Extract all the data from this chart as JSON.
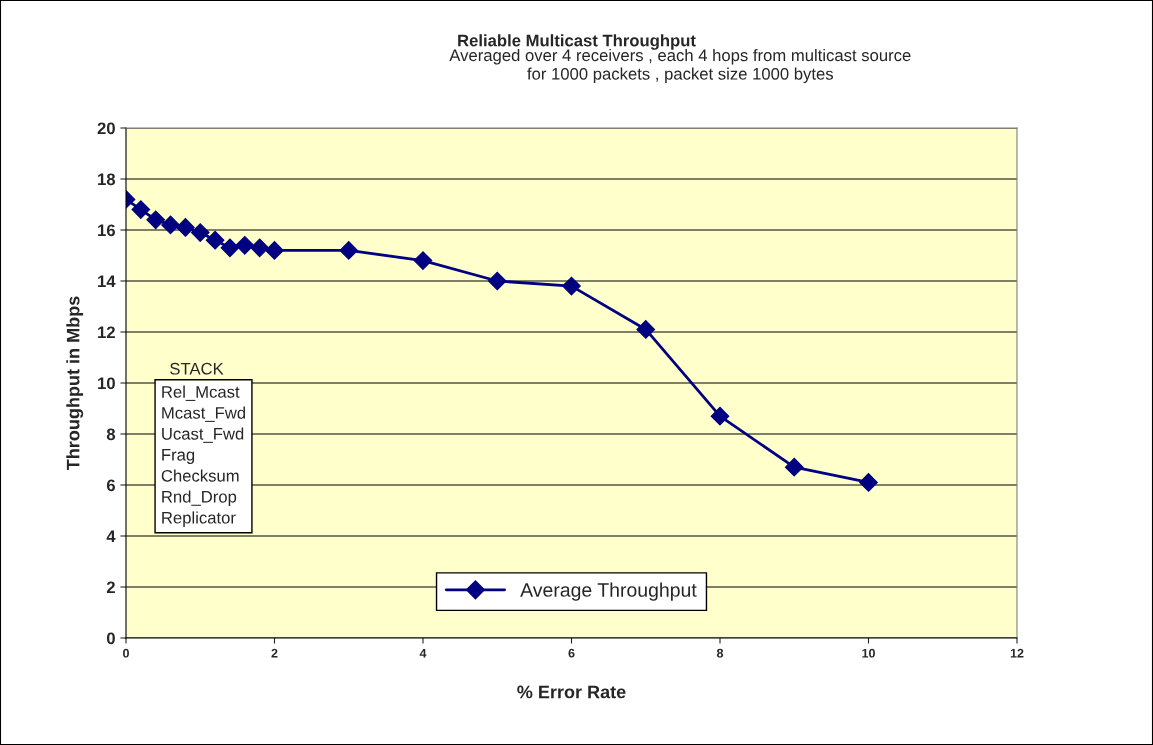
{
  "chart_data": {
    "type": "line",
    "title": "Reliable Multicast Throughput",
    "subtitle": "Averaged over 4 receivers , each 4 hops from multicast source\nfor 1000 packets , packet size 1000 bytes",
    "xlabel": "% Error Rate",
    "ylabel": "Throughput in Mbps",
    "x": [
      0,
      0.2,
      0.4,
      0.6,
      0.8,
      1.0,
      1.2,
      1.4,
      1.6,
      1.8,
      2,
      3,
      4,
      5,
      6,
      7,
      8,
      9,
      10
    ],
    "series": [
      {
        "name": "Average Throughput",
        "color": "#000080",
        "values": [
          17.2,
          16.8,
          16.4,
          16.2,
          16.1,
          15.9,
          15.6,
          15.3,
          15.4,
          15.3,
          15.2,
          15.2,
          14.8,
          14.0,
          13.8,
          12.1,
          8.7,
          6.7,
          6.1
        ]
      }
    ],
    "xlim": [
      0,
      12
    ],
    "xticks": [
      0,
      2,
      4,
      6,
      8,
      10,
      12
    ],
    "ylim": [
      0,
      20
    ],
    "yticks": [
      0,
      2,
      4,
      6,
      8,
      10,
      12,
      14,
      16,
      18,
      20
    ],
    "grid": "y",
    "legend": "bottom",
    "marker": "diamond",
    "line_style": "solid",
    "annotations": [
      "STACK",
      "Rel_Mcast\nMcast_Fwd\nUcast_Fwd\nFrag\nChecksum\nRnd_Drop\nReplicator"
    ]
  }
}
